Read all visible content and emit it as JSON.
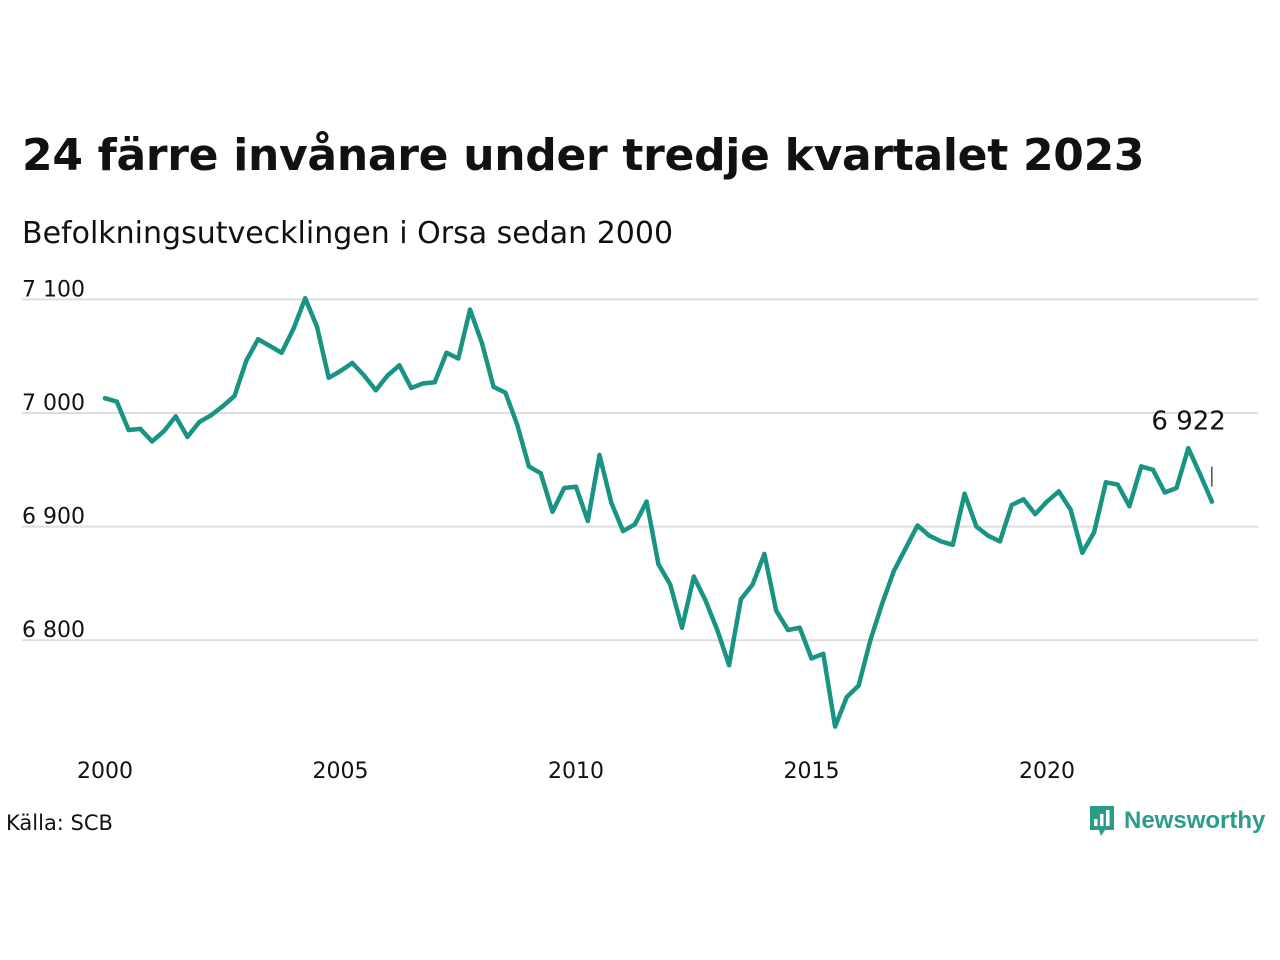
{
  "header": {
    "title": "24 färre invånare under tredje kvartalet 2023",
    "subtitle": "Befolkningsutvecklingen i Orsa sedan 2000"
  },
  "footer": {
    "source": "Källa: SCB",
    "brand": "Newsworthy"
  },
  "colors": {
    "line": "#1a9482",
    "grid": "#dddddd",
    "brand": "#2a9d8a",
    "text": "#111111"
  },
  "chart_data": {
    "type": "line",
    "title": "24 färre invånare under tredje kvartalet 2023",
    "subtitle": "Befolkningsutvecklingen i Orsa sedan 2000",
    "grid": true,
    "ylim": [
      6710,
      7110
    ],
    "xlim": [
      2000,
      2024.5
    ],
    "yticks": [
      6800,
      6900,
      7000,
      7100
    ],
    "ytick_labels": [
      "6 800",
      "6 900",
      "7 000",
      "7 100"
    ],
    "xticks": [
      2000,
      2005,
      2010,
      2015,
      2020
    ],
    "xtick_labels": [
      "2000",
      "2005",
      "2010",
      "2015",
      "2020"
    ],
    "annotation": {
      "label": "6 922",
      "x": 2023.5,
      "y": 6922
    },
    "series": [
      {
        "x": [
          2000.0,
          2000.25,
          2000.5,
          2000.75,
          2001.0,
          2001.25,
          2001.5,
          2001.75,
          2002.0,
          2002.25,
          2002.5,
          2002.75,
          2003.0,
          2003.25,
          2003.5,
          2003.75,
          2004.0,
          2004.25,
          2004.5,
          2004.75,
          2005.0,
          2005.25,
          2005.5,
          2005.75,
          2006.0,
          2006.25,
          2006.5,
          2006.75,
          2007.0,
          2007.25,
          2007.5,
          2007.75,
          2008.0,
          2008.25,
          2008.5,
          2008.75,
          2009.0,
          2009.25,
          2009.5,
          2009.75,
          2010.0,
          2010.25,
          2010.5,
          2010.75,
          2011.0,
          2011.25,
          2011.5,
          2011.75,
          2012.0,
          2012.25,
          2012.5,
          2012.75,
          2013.0,
          2013.25,
          2013.5,
          2013.75,
          2014.0,
          2014.25,
          2014.5,
          2014.75,
          2015.0,
          2015.25,
          2015.5,
          2015.75,
          2016.0,
          2016.25,
          2016.5,
          2016.75,
          2017.0,
          2017.25,
          2017.5,
          2017.75,
          2018.0,
          2018.25,
          2018.5,
          2018.75,
          2019.0,
          2019.25,
          2019.5,
          2019.75,
          2020.0,
          2020.25,
          2020.5,
          2020.75,
          2021.0,
          2021.25,
          2021.5,
          2021.75,
          2022.0,
          2022.25,
          2022.5,
          2022.75,
          2023.0,
          2023.25,
          2023.5
        ],
        "values": [
          7013,
          7010,
          6985,
          6986,
          6975,
          6984,
          6997,
          6979,
          6992,
          6998,
          7006,
          7015,
          7046,
          7065,
          7059,
          7053,
          7074,
          7101,
          7076,
          7031,
          7037,
          7044,
          7033,
          7020,
          7033,
          7042,
          7022,
          7026,
          7027,
          7053,
          7048,
          7091,
          7062,
          7023,
          7018,
          6990,
          6953,
          6947,
          6913,
          6934,
          6935,
          6905,
          6963,
          6921,
          6896,
          6902,
          6922,
          6867,
          6849,
          6811,
          6856,
          6835,
          6809,
          6778,
          6836,
          6849,
          6876,
          6826,
          6809,
          6811,
          6784,
          6788,
          6724,
          6750,
          6760,
          6800,
          6832,
          6861,
          6881,
          6901,
          6892,
          6887,
          6884,
          6929,
          6900,
          6892,
          6887,
          6919,
          6924,
          6911,
          6922,
          6931,
          6915,
          6877,
          6895,
          6939,
          6937,
          6918,
          6953,
          6950,
          6930,
          6934,
          6969,
          6946,
          6922
        ]
      }
    ]
  }
}
